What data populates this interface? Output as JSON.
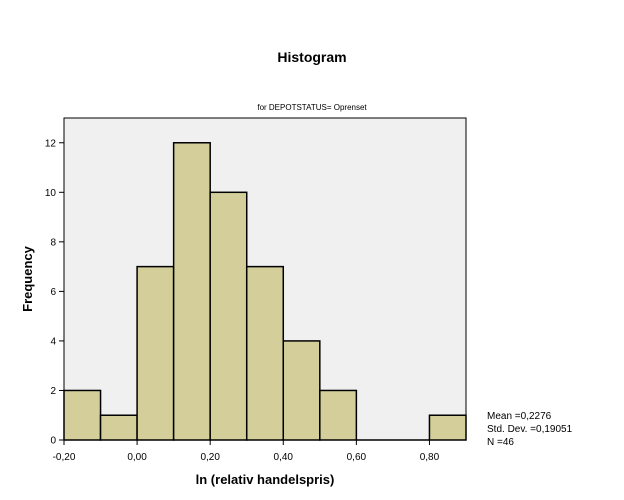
{
  "chart_data": {
    "type": "bar",
    "title": "Histogram",
    "subtitle": "for DEPOTSTATUS= Oprenset",
    "xlabel": "ln (relativ handelspris)",
    "ylabel": "Frequency",
    "bins": [
      {
        "from": -0.2,
        "to": -0.1,
        "count": 2
      },
      {
        "from": -0.1,
        "to": 0.0,
        "count": 1
      },
      {
        "from": 0.0,
        "to": 0.1,
        "count": 7
      },
      {
        "from": 0.1,
        "to": 0.2,
        "count": 12
      },
      {
        "from": 0.2,
        "to": 0.3,
        "count": 10
      },
      {
        "from": 0.3,
        "to": 0.4,
        "count": 7
      },
      {
        "from": 0.4,
        "to": 0.5,
        "count": 4
      },
      {
        "from": 0.5,
        "to": 0.6,
        "count": 2
      },
      {
        "from": 0.6,
        "to": 0.7,
        "count": 0
      },
      {
        "from": 0.7,
        "to": 0.8,
        "count": 0
      },
      {
        "from": 0.8,
        "to": 0.9,
        "count": 1
      }
    ],
    "xlim": [
      -0.2,
      0.9
    ],
    "ylim": [
      0,
      13
    ],
    "x_ticks": [
      -0.2,
      0.0,
      0.2,
      0.4,
      0.6,
      0.8
    ],
    "x_tick_labels": [
      "-0,20",
      "0,00",
      "0,20",
      "0,40",
      "0,60",
      "0,80"
    ],
    "y_ticks": [
      0,
      2,
      4,
      6,
      8,
      10,
      12
    ],
    "y_tick_labels": [
      "0",
      "2",
      "4",
      "6",
      "8",
      "10",
      "12"
    ],
    "grid": false,
    "stats": {
      "mean": "Mean =0,2276",
      "std_dev": "Std. Dev. =0,19051",
      "n": "N =46"
    },
    "colors": {
      "bar_fill": "#d4cf9a",
      "bar_stroke": "#000000",
      "plot_background": "#f0f0f0",
      "page_background": "#ffffff"
    }
  }
}
